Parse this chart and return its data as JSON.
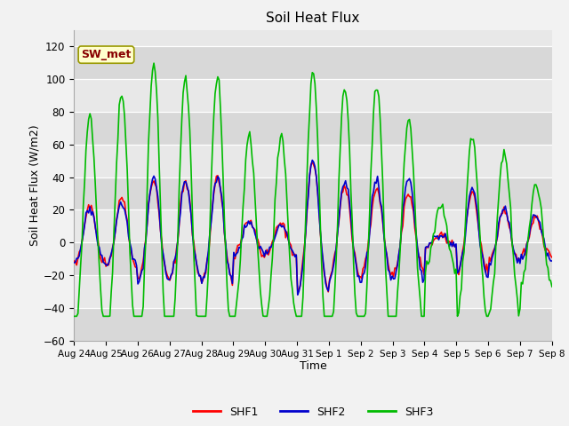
{
  "title": "Soil Heat Flux",
  "xlabel": "Time",
  "ylabel": "Soil Heat Flux (W/m2)",
  "ylim": [
    -60,
    130
  ],
  "yticks": [
    -60,
    -40,
    -20,
    0,
    20,
    40,
    60,
    80,
    100,
    120
  ],
  "legend_labels": [
    "SHF1",
    "SHF2",
    "SHF3"
  ],
  "legend_colors": [
    "#ff0000",
    "#0000cc",
    "#00bb00"
  ],
  "background_color": "#f2f2f2",
  "sw_met_box_color": "#ffffcc",
  "sw_met_text_color": "#880000",
  "date_labels": [
    "Aug 24",
    "Aug 25",
    "Aug 26",
    "Aug 27",
    "Aug 28",
    "Aug 29",
    "Aug 30",
    "Aug 31",
    "Sep 1",
    "Sep 2",
    "Sep 3",
    "Sep 4",
    "Sep 5",
    "Sep 6",
    "Sep 7",
    "Sep 8"
  ],
  "band_colors_alt": [
    "#d8d8d8",
    "#e8e8e8"
  ]
}
